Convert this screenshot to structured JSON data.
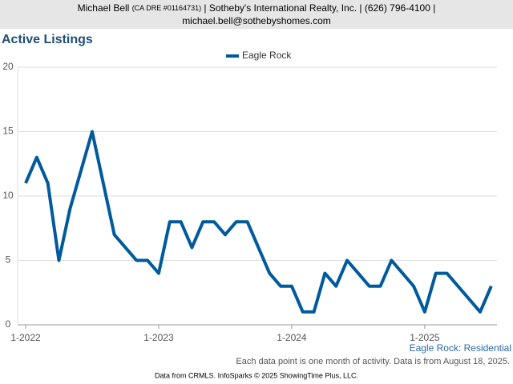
{
  "header": {
    "name": "Michael Bell",
    "license": "(CA DRE #01164731)",
    "details": "| Sotheby's International Realty, Inc. | (626) 796-4100 |",
    "email": "michael.bell@sothebyshomes.com"
  },
  "chart_data": {
    "type": "line",
    "title": "Active Listings",
    "categories": [
      "1-2022",
      null,
      null,
      null,
      null,
      null,
      null,
      null,
      null,
      null,
      null,
      null,
      "1-2023",
      null,
      null,
      null,
      null,
      null,
      null,
      null,
      null,
      null,
      null,
      null,
      "1-2024",
      null,
      null,
      null,
      null,
      null,
      null,
      null,
      null,
      null,
      null,
      null,
      "1-2025",
      null,
      null,
      null,
      null,
      null,
      null
    ],
    "series": [
      {
        "name": "Eagle Rock",
        "color": "#005a9c",
        "values": [
          11,
          13,
          11,
          5,
          9,
          12,
          15,
          11,
          7,
          6,
          5,
          5,
          4,
          8,
          8,
          6,
          8,
          8,
          7,
          8,
          8,
          6,
          4,
          3,
          3,
          1,
          1,
          4,
          3,
          5,
          4,
          3,
          3,
          5,
          4,
          3,
          1,
          4,
          4,
          3,
          2,
          1,
          3
        ]
      }
    ],
    "ylim": [
      0,
      20
    ],
    "yticks": [
      0,
      5,
      10,
      15,
      20
    ],
    "grid": true,
    "legend": "top",
    "annotations": [
      "Eagle Rock: Residential",
      "Each data point is one month of activity. Data is from August 18, 2025."
    ],
    "source": "Data from CRMLS. InfoSparks © 2025 ShowingTime Plus, LLC."
  }
}
